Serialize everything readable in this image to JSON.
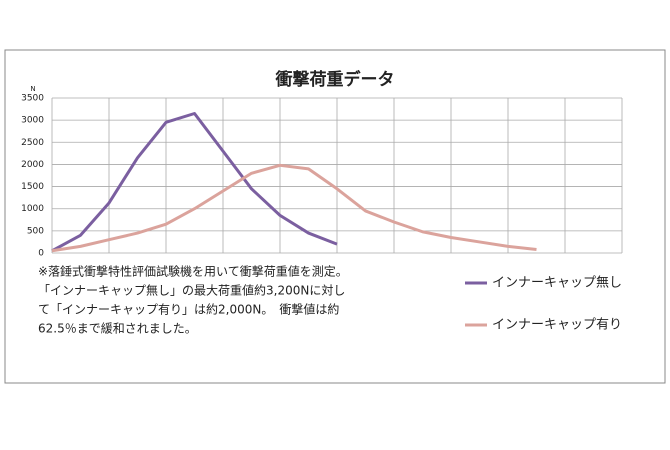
{
  "chart_data": {
    "type": "line",
    "title": "衝撃荷重データ",
    "y_unit": "N",
    "categories": [
      null,
      null,
      null,
      null,
      null,
      null,
      null,
      null,
      null,
      null,
      null,
      null,
      null,
      null,
      null,
      null,
      null,
      null,
      null,
      null,
      null
    ],
    "series": [
      {
        "name": "インナーキャップ無し",
        "color": "#7b5fa0",
        "values": [
          50,
          400,
          1130,
          2150,
          2950,
          3150,
          2300,
          1450,
          850,
          450,
          200,
          null,
          null,
          null,
          null,
          null,
          null,
          null,
          null,
          null,
          null
        ]
      },
      {
        "name": "インナーキャップ有り",
        "color": "#dba39c",
        "values": [
          50,
          150,
          300,
          450,
          650,
          1000,
          1400,
          1800,
          1980,
          1900,
          1450,
          950,
          700,
          480,
          350,
          250,
          150,
          80,
          null,
          null,
          null
        ]
      }
    ],
    "ylim": [
      0,
      3500
    ],
    "yticks": [
      0,
      500,
      1000,
      1500,
      2000,
      2500,
      3000,
      3500
    ],
    "grid": true,
    "notes": [
      "※落錘式衝撃特性評価試験機を用いて衝撃荷重値を測定。",
      "「インナーキャップ無し」の最大荷重値約3,200Nに対し",
      "て「インナーキャップ有り」は約2,000N。　衝撃値は約",
      "62.5％まで緩和されました。"
    ]
  }
}
